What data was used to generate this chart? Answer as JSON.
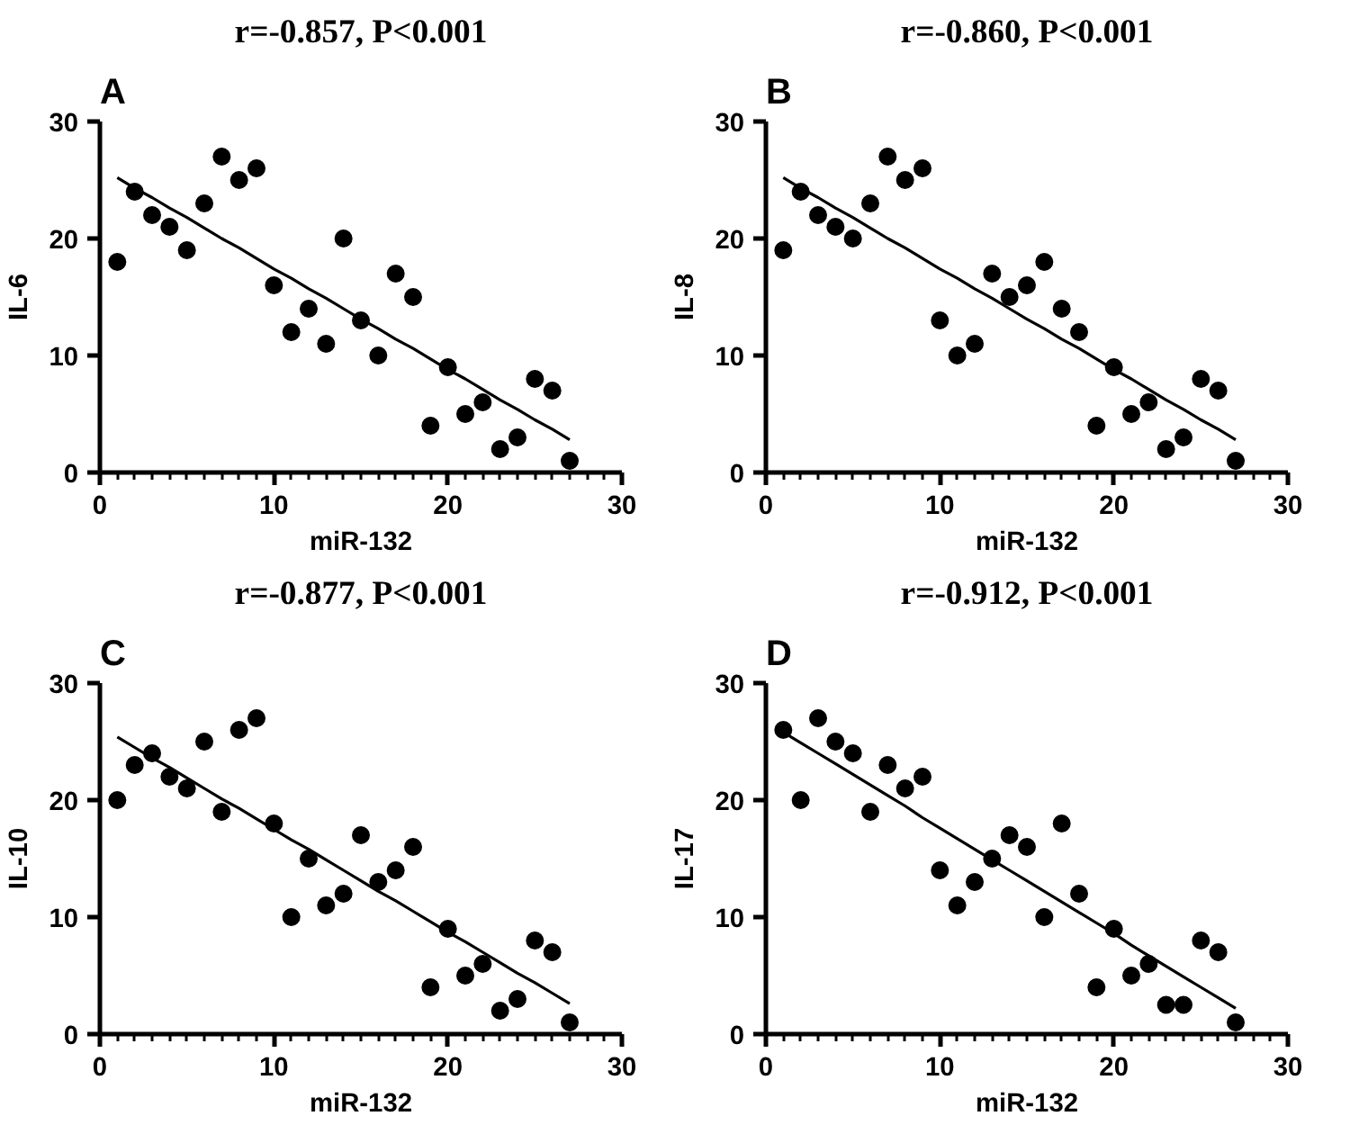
{
  "chart_data": [
    {
      "type": "scatter",
      "title": "r=-0.857, P<0.001",
      "xlabel": "miR-132",
      "ylabel": "IL-6",
      "annotations": [
        "A"
      ],
      "xlim": [
        0,
        30
      ],
      "ylim": [
        0,
        30
      ],
      "xticks": [
        0,
        10,
        20,
        30
      ],
      "yticks": [
        0,
        10,
        20,
        30
      ],
      "x": [
        1,
        2,
        3,
        4,
        5,
        6,
        7,
        8,
        9,
        10,
        11,
        12,
        13,
        14,
        15,
        16,
        17,
        18,
        19,
        20,
        21,
        22,
        23,
        24,
        25,
        26,
        27
      ],
      "series": [
        {
          "color": "#000000",
          "marker": "circle",
          "values": [
            18,
            24,
            22,
            21,
            19,
            23,
            27,
            25,
            26,
            16,
            12,
            14,
            11,
            20,
            13,
            10,
            17,
            15,
            4,
            9,
            5,
            6,
            2,
            3,
            8,
            7,
            1
          ]
        },
        {
          "type": "line",
          "color": "#000000",
          "values": [
            25.2,
            24.3,
            23.5,
            22.6,
            21.8,
            20.9,
            20.0,
            19.2,
            18.3,
            17.4,
            16.6,
            15.7,
            14.9,
            14.0,
            13.1,
            12.3,
            11.4,
            10.6,
            9.7,
            8.8,
            8.0,
            7.1,
            6.2,
            5.4,
            4.5,
            3.7,
            2.8
          ]
        }
      ]
    },
    {
      "type": "scatter",
      "title": "r=-0.860, P<0.001",
      "xlabel": "miR-132",
      "ylabel": "IL-8",
      "annotations": [
        "B"
      ],
      "xlim": [
        0,
        30
      ],
      "ylim": [
        0,
        30
      ],
      "xticks": [
        0,
        10,
        20,
        30
      ],
      "yticks": [
        0,
        10,
        20,
        30
      ],
      "x": [
        1,
        2,
        3,
        4,
        5,
        6,
        7,
        8,
        9,
        10,
        11,
        12,
        13,
        14,
        15,
        16,
        17,
        18,
        19,
        20,
        21,
        22,
        23,
        24,
        25,
        26,
        27
      ],
      "series": [
        {
          "color": "#000000",
          "marker": "circle",
          "values": [
            19,
            24,
            22,
            21,
            20,
            23,
            27,
            25,
            26,
            13,
            10,
            11,
            17,
            15,
            16,
            18,
            14,
            12,
            4,
            9,
            5,
            6,
            2,
            3,
            8,
            7,
            1
          ]
        },
        {
          "type": "line",
          "color": "#000000",
          "values": [
            25.2,
            24.3,
            23.5,
            22.6,
            21.8,
            20.9,
            20.0,
            19.2,
            18.3,
            17.4,
            16.6,
            15.7,
            14.9,
            14.0,
            13.1,
            12.3,
            11.4,
            10.6,
            9.7,
            8.8,
            8.0,
            7.1,
            6.2,
            5.4,
            4.5,
            3.7,
            2.8
          ]
        }
      ]
    },
    {
      "type": "scatter",
      "title": "r=-0.877, P<0.001",
      "xlabel": "miR-132",
      "ylabel": "IL-10",
      "annotations": [
        "C"
      ],
      "xlim": [
        0,
        30
      ],
      "ylim": [
        0,
        30
      ],
      "xticks": [
        0,
        10,
        20,
        30
      ],
      "yticks": [
        0,
        10,
        20,
        30
      ],
      "x": [
        1,
        2,
        3,
        4,
        5,
        6,
        7,
        8,
        9,
        10,
        11,
        12,
        13,
        14,
        15,
        16,
        17,
        18,
        19,
        20,
        21,
        22,
        23,
        24,
        25,
        26,
        27
      ],
      "series": [
        {
          "color": "#000000",
          "marker": "circle",
          "values": [
            20,
            23,
            24,
            22,
            21,
            25,
            19,
            26,
            27,
            18,
            10,
            15,
            11,
            12,
            17,
            13,
            14,
            16,
            4,
            9,
            5,
            6,
            2,
            3,
            8,
            7,
            1
          ]
        },
        {
          "type": "line",
          "color": "#000000",
          "values": [
            25.4,
            24.5,
            23.6,
            22.8,
            21.9,
            21.0,
            20.1,
            19.3,
            18.4,
            17.5,
            16.6,
            15.8,
            14.9,
            14.0,
            13.1,
            12.2,
            11.4,
            10.5,
            9.6,
            8.7,
            7.9,
            7.0,
            6.1,
            5.2,
            4.4,
            3.5,
            2.6
          ]
        }
      ]
    },
    {
      "type": "scatter",
      "title": "r=-0.912, P<0.001",
      "xlabel": "miR-132",
      "ylabel": "IL-17",
      "annotations": [
        "D"
      ],
      "xlim": [
        0,
        30
      ],
      "ylim": [
        0,
        30
      ],
      "xticks": [
        0,
        10,
        20,
        30
      ],
      "yticks": [
        0,
        10,
        20,
        30
      ],
      "x": [
        1,
        2,
        3,
        4,
        5,
        6,
        7,
        8,
        9,
        10,
        11,
        12,
        13,
        14,
        15,
        16,
        17,
        18,
        19,
        20,
        21,
        22,
        23,
        24,
        25,
        26,
        27
      ],
      "series": [
        {
          "color": "#000000",
          "marker": "circle",
          "values": [
            26,
            20,
            27,
            25,
            24,
            19,
            23,
            21,
            22,
            14,
            11,
            13,
            15,
            17,
            16,
            10,
            18,
            12,
            4,
            9,
            5,
            6,
            2.5,
            2.5,
            8,
            7,
            1
          ]
        },
        {
          "type": "line",
          "color": "#000000",
          "values": [
            25.8,
            24.9,
            24.0,
            23.1,
            22.2,
            21.3,
            20.4,
            19.5,
            18.5,
            17.6,
            16.7,
            15.8,
            14.9,
            14.0,
            13.1,
            12.2,
            11.3,
            10.4,
            9.5,
            8.6,
            7.6,
            6.7,
            5.8,
            4.9,
            4.0,
            3.1,
            2.2
          ]
        }
      ]
    }
  ]
}
